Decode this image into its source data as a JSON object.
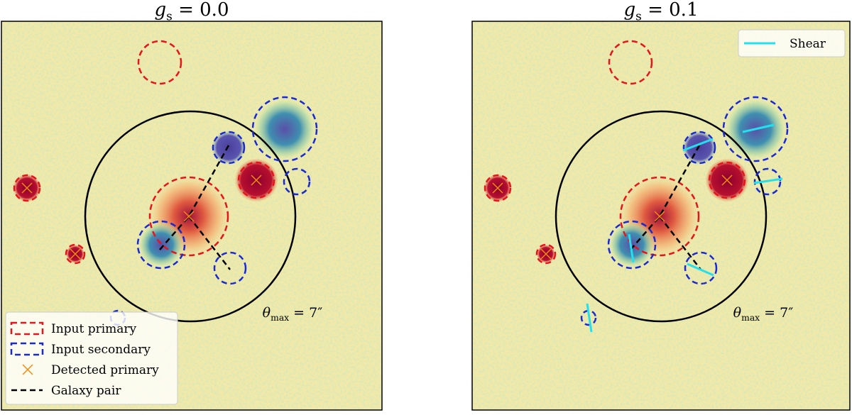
{
  "panels": [
    {
      "title": {
        "symbol": "g",
        "subscript": "s",
        "text": " = 0.0"
      },
      "annotation": {
        "symbol": "θ",
        "subscript": "max",
        "text": " = 7″"
      },
      "legend": [
        "Input primary",
        "Input secondary",
        "Detected primary",
        "Galaxy pair"
      ]
    },
    {
      "title": {
        "symbol": "g",
        "subscript": "s",
        "text": " = 0.1"
      },
      "annotation": {
        "symbol": "θ",
        "subscript": "max",
        "text": " = 7″"
      },
      "legend": [
        "Shear"
      ]
    }
  ]
}
